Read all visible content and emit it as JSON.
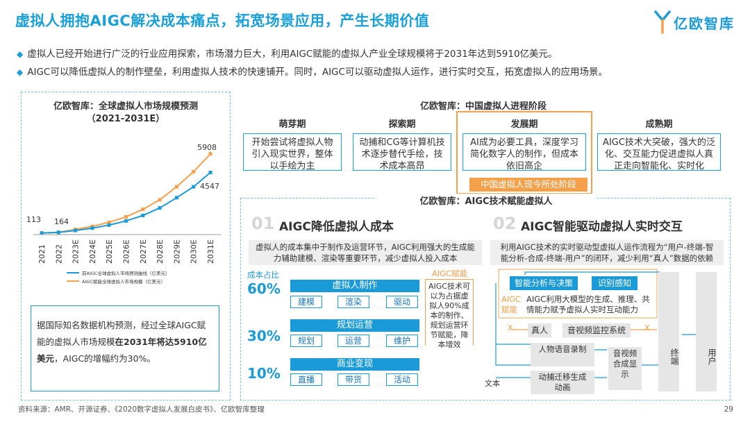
{
  "header": {
    "title": "虚拟人拥抱AIGC解决成本痛点，拓宽场景应用，产生长期价值",
    "logo_text": "亿欧智库",
    "logo_icon": "yiou-logo-icon"
  },
  "bullets": [
    "虚拟人已经开始进行广泛的行业应用探索，市场潜力巨大，利用AIGC赋能的虚拟人产业全球规模将于2031年达到5910亿美元。",
    "AIGC可以降低虚拟人的制作壁垒，利用虚拟人技术的快速铺开。同时，AIGC可以驱动虚拟人运作，进行实时交互，拓宽虚拟人的应用场景。"
  ],
  "left_panel": {
    "title": "亿欧智库：全球虚拟人市场规模预测",
    "subtitle": "（2021-2031E）",
    "note_pre": "据国际知名数据机构预测，经过全球AIGC赋能的虚拟人市场规模",
    "note_bold": "在2031年将达5910亿美元",
    "note_post": "，AIGC的增幅约为30%。"
  },
  "chart_data": {
    "type": "line",
    "x": [
      "2021",
      "2022",
      "2023E",
      "2024E",
      "2025E",
      "2026E",
      "2027E",
      "2028E",
      "2029E",
      "2030E",
      "2031E"
    ],
    "series": [
      {
        "name": "前AIGC全球虚拟人市场预测曲线（亿美元）",
        "color": "#1a9ad6",
        "values": [
          113,
          164,
          300,
          470,
          700,
          1000,
          1400,
          1950,
          2700,
          3500,
          4547
        ]
      },
      {
        "name": "AIGC赋能全球虚拟人市场规模（亿美元）",
        "color": "#f5a04a",
        "values": [
          113,
          164,
          380,
          600,
          900,
          1300,
          1850,
          2550,
          3500,
          4600,
          5908
        ]
      }
    ],
    "labels": {
      "start1": "113",
      "start2": "164",
      "end_orange": "5908",
      "end_blue": "4547"
    },
    "ylim": [
      0,
      6500
    ]
  },
  "stages": {
    "title": "亿欧智库：中国虚拟人进程阶段",
    "items": [
      {
        "name": "萌芽期",
        "desc": "开始尝试将虚拟人物引入现实世界，整体以手绘为主"
      },
      {
        "name": "探索期",
        "desc": "动捕和CG等计算机技术逐步替代手绘，技术成本高昂"
      },
      {
        "name": "发展期",
        "desc": "AI成为必要工具，深度学习简化数字人的制作，但成本依旧高企"
      },
      {
        "name": "成熟期",
        "desc": "AIGC技术大突破，强大的泛化、交互能力促进虚拟人真正走向智能化、实时化"
      }
    ],
    "current_label": "中国虚拟人现今所处阶段"
  },
  "aigc": {
    "title": "亿欧智库：AIGC技术赋能虚拟人",
    "cost": {
      "num": "01",
      "heading": "AIGC降低虚拟人成本",
      "desc": "虚拟人的成本集中于制作及运营环节，AIGC利用强大的生成能力辅助建模、渲染等重要环节，减少虚拟人投入成本",
      "ratio_label": "成本占比",
      "rows": [
        {
          "pct": "60%",
          "name": "虚拟人制作",
          "tags": [
            "建模",
            "渲染",
            "驱动"
          ]
        },
        {
          "pct": "30%",
          "name": "规划运营",
          "tags": [
            "规划",
            "运营",
            "维护"
          ]
        },
        {
          "pct": "10%",
          "name": "商业变现",
          "tags": [
            "直播",
            "带货",
            "活动"
          ]
        }
      ],
      "empower_label": "AIGC赋能",
      "empower_text": "AIGC技术可以为占据虚拟人90%成本的制作、规划运营环节赋能，降本增效"
    },
    "interact": {
      "num": "02",
      "heading": "AIGC智能驱动虚拟人实时交互",
      "desc": "利用AIGC技术的实时驱动型虚拟人运作流程为“用户-终端-智能分析-合成-终端-用户”的闭环，减少利用“真人”数据的依赖",
      "analysis": "智能分析与决策",
      "perception": "识别感知",
      "aigc_label": "AIGC赋能",
      "aigc_text": "AIGC利用大模型的生成、推理、共情能力赋予虚拟人实时互动能力",
      "x_mark": "X",
      "real_person": "真人",
      "av_monitor": "音视频监控系统",
      "terminal": "终端",
      "user": "用户",
      "voice": "人物语音录制",
      "motion": "动捕迁移生成动画",
      "av_compose": "音视频合成显示",
      "text": "文本"
    }
  },
  "footer": {
    "source": "资料来源：AMR、开源证券、《2020数字虚拟人发展白皮书》、亿欧智库整理",
    "page": "29"
  }
}
